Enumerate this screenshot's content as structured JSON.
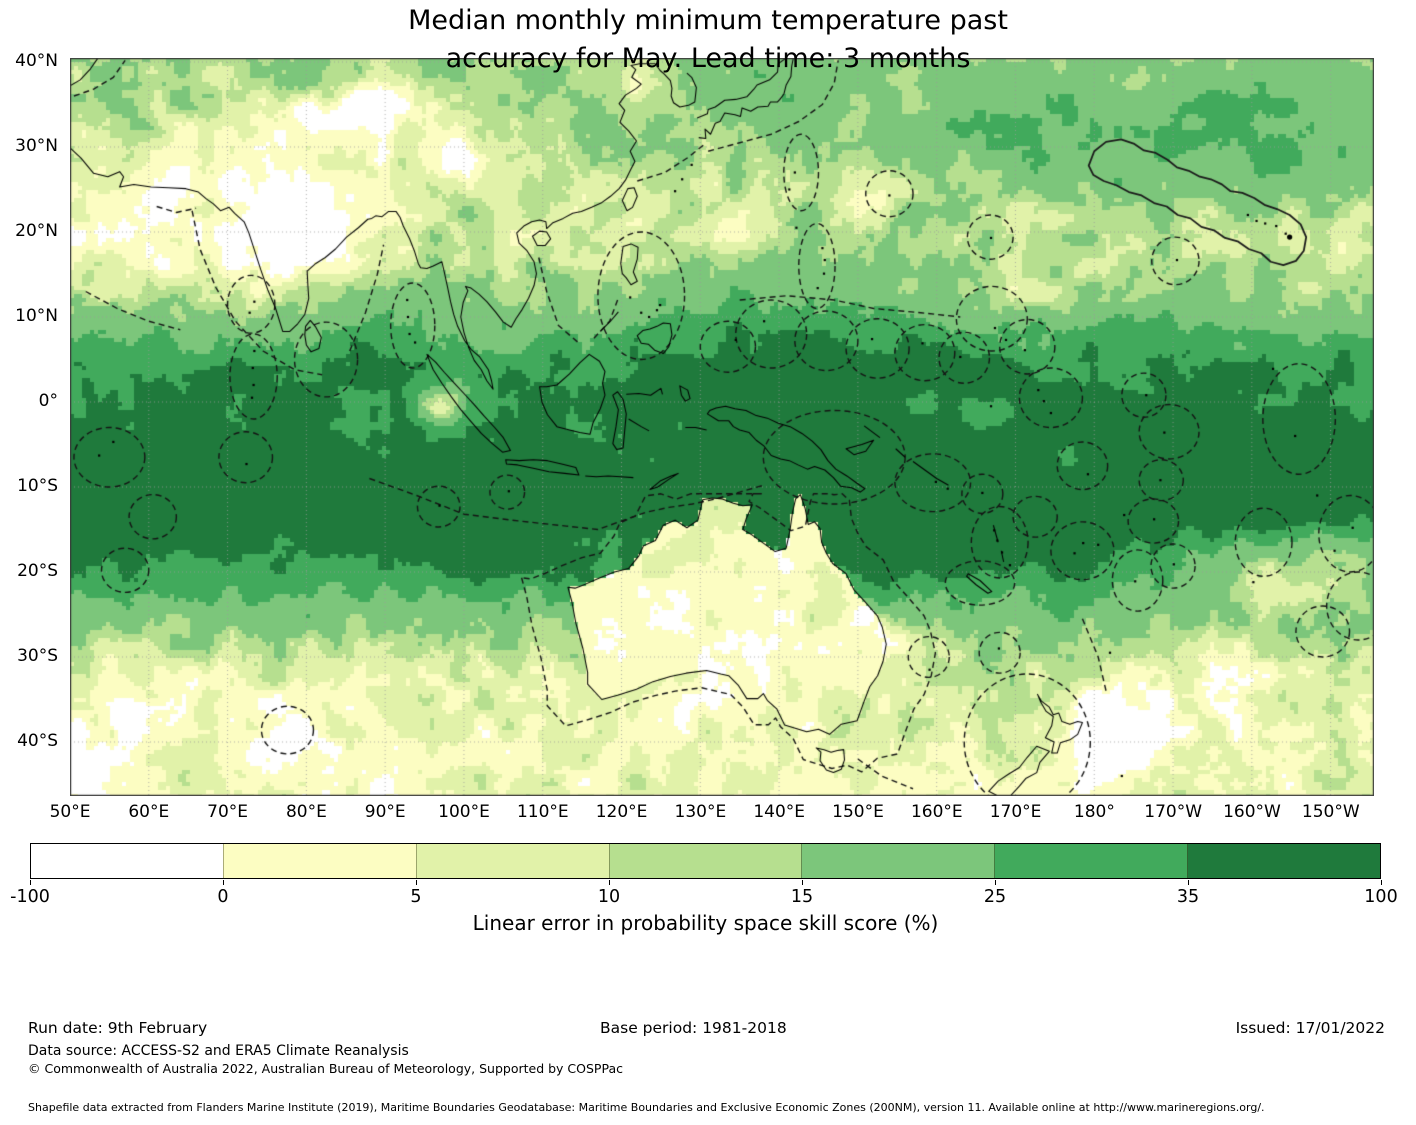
{
  "title": {
    "line1": "Median monthly minimum temperature past",
    "line2": "accuracy for May. Lead time: 3 months"
  },
  "map": {
    "x_ticks": [
      "50°E",
      "60°E",
      "70°E",
      "80°E",
      "90°E",
      "100°E",
      "110°E",
      "120°E",
      "130°E",
      "140°E",
      "150°E",
      "160°E",
      "170°E",
      "180°",
      "170°W",
      "160°W",
      "150°W"
    ],
    "y_ticks": [
      "40°N",
      "30°N",
      "20°N",
      "10°N",
      "0°",
      "10°S",
      "20°S",
      "30°S",
      "40°S"
    ]
  },
  "colorbar": {
    "tick_labels": [
      "-100",
      "0",
      "5",
      "10",
      "15",
      "25",
      "35",
      "100"
    ],
    "segment_colors": [
      "#ffffff",
      "#fcfdc2",
      "#e1f2a9",
      "#b6df8f",
      "#7cc67b",
      "#41aa5c",
      "#1f7a3c"
    ],
    "label": "Linear error in probability space skill score (%)"
  },
  "footer": {
    "run_date": "Run date: 9th February",
    "base_period": "Base period: 1981-2018",
    "issued": "Issued: 17/01/2022",
    "data_source": "Data source: ACCESS-S2 and ERA5 Climate Reanalysis",
    "copyright": "© Commonwealth of Australia 2022, Australian Bureau of Meteorology, Supported by COSPPac",
    "shapefile_note": "Shapefile data extracted from Flanders Marine Institute (2019), Maritime Boundaries Geodatabase: Maritime Boundaries and Exclusive Economic Zones (200NM), version 11. Available online at http://www.marineregions.org/."
  },
  "chart_data": {
    "type": "heatmap",
    "title": "Median monthly minimum temperature past accuracy for May. Lead time: 3 months",
    "value_label": "Linear error in probability space skill score (%)",
    "projection": "lat/lon grid, 10° graticule",
    "lon_extent": [
      "50°E",
      "145°W"
    ],
    "lat_extent": [
      "40°N",
      "46°S"
    ],
    "color_levels": [
      -100,
      0,
      5,
      10,
      15,
      25,
      35,
      100
    ],
    "level_colors": [
      "#ffffff",
      "#fcfdc2",
      "#e1f2a9",
      "#b6df8f",
      "#7cc67b",
      "#41aa5c",
      "#1f7a3c"
    ],
    "overlays": [
      "coastlines (solid)",
      "EEZ maritime boundaries (dashed)",
      "Hawaii EEZ (solid)"
    ],
    "regions_approx": [
      {
        "region": "Equatorial band 5°N–20°S, Indian Ocean & west Pacific",
        "skill_pct": "35–100"
      },
      {
        "region": "Northeast Pacific 20–35°N around Hawaii",
        "skill_pct": "25–100"
      },
      {
        "region": "West Pacific warm pool 5–20°N",
        "skill_pct": "25–35"
      },
      {
        "region": "Australian interior",
        "skill_pct": "-100–5"
      },
      {
        "region": "Central India and Tibetan Plateau",
        "skill_pct": "-100–5"
      },
      {
        "region": "Arabian Sea / NW India 15–30°N",
        "skill_pct": "0–10"
      },
      {
        "region": "Subtropical band 25–35°S",
        "skill_pct": "0–15"
      },
      {
        "region": "Southeast Pacific 15–25°S east of 180°",
        "skill_pct": "0–10"
      },
      {
        "region": "Southern Ocean 35–46°S",
        "skill_pct": "0–10"
      },
      {
        "region": "Tasman Sea / New Zealand",
        "skill_pct": "5–25"
      }
    ]
  }
}
